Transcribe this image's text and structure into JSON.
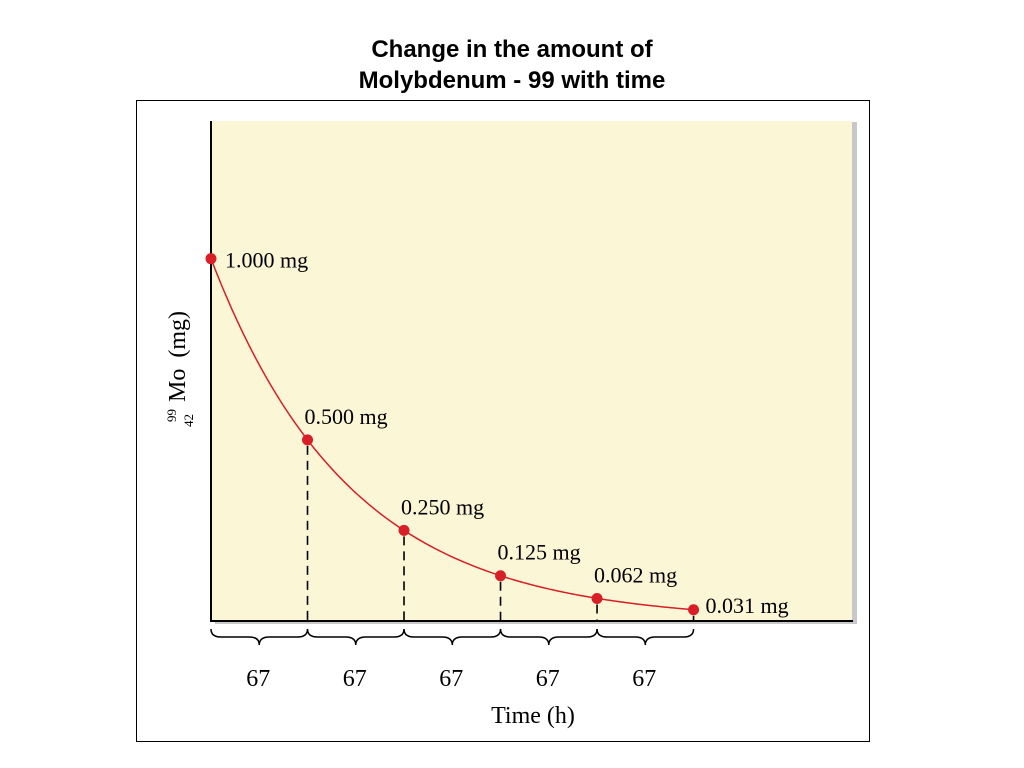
{
  "title": {
    "line1": "Change in the amount of",
    "line2": "Molybdenum - 99 with time"
  },
  "colors": {
    "plot_background": "#fbf6d6",
    "curve": "#d81e26",
    "point": "#d81e26",
    "axis": "#000000"
  },
  "chart_data": {
    "type": "line",
    "title": "Change in the amount of Molybdenum - 99 with time",
    "xlabel": "Time (h)",
    "ylabel": "Mo (mg)",
    "ylabel_isotope": {
      "mass_number": "99",
      "atomic_number": "42",
      "symbol": "Mo"
    },
    "ylabel_unit": "(mg)",
    "interval_labels": [
      "67",
      "67",
      "67",
      "67",
      "67"
    ],
    "x": [
      0,
      67,
      134,
      201,
      268,
      335
    ],
    "series": [
      {
        "values": [
          1.0,
          0.5,
          0.25,
          0.125,
          0.062,
          0.031
        ],
        "point_labels": [
          "1.000 mg",
          "0.500 mg",
          "0.250 mg",
          "0.125 mg",
          "0.062 mg",
          "0.031 mg"
        ]
      }
    ],
    "xlim": [
      0,
      445
    ],
    "ylim": [
      0,
      1.38
    ],
    "grid": false,
    "legend": "none",
    "dashed_drop_lines": true
  }
}
